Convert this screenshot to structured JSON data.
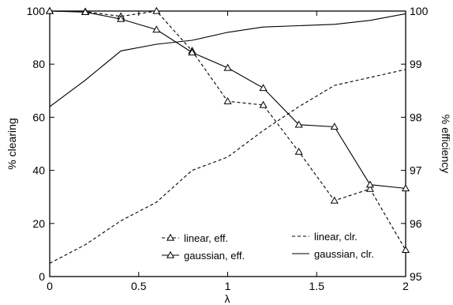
{
  "chart_data": {
    "type": "line",
    "xlabel": "λ",
    "ylabel_left": "% clearing",
    "ylabel_right": "% efficiency",
    "xlim": [
      0,
      2
    ],
    "ylim_left": [
      0,
      100
    ],
    "ylim_right": [
      95,
      100
    ],
    "x_ticks": [
      "0",
      "0.5",
      "1",
      "1.5",
      "2"
    ],
    "y_left_ticks": [
      "0",
      "20",
      "40",
      "60",
      "80",
      "100"
    ],
    "y_right_ticks": [
      "95",
      "96",
      "97",
      "98",
      "99",
      "100"
    ],
    "grid": false,
    "series": [
      {
        "name": "linear, clr.",
        "axis": "left",
        "style": "dashed",
        "marker": "none",
        "x": [
          0,
          0.2,
          0.4,
          0.6,
          0.8,
          1.0,
          1.2,
          1.4,
          1.6,
          1.8,
          2.0
        ],
        "y": [
          5,
          12,
          21,
          28,
          40,
          45,
          55,
          64,
          72,
          75,
          78
        ]
      },
      {
        "name": "gaussian, clr.",
        "axis": "left",
        "style": "solid",
        "marker": "none",
        "x": [
          0,
          0.2,
          0.4,
          0.6,
          0.8,
          1.0,
          1.2,
          1.4,
          1.6,
          1.8,
          2.0
        ],
        "y": [
          64,
          74,
          85,
          87.5,
          89,
          92,
          94,
          94.5,
          95,
          96.5,
          99
        ]
      },
      {
        "name": "linear, eff.",
        "axis": "right",
        "style": "dashed",
        "marker": "triangle",
        "x": [
          0,
          0.2,
          0.4,
          0.6,
          0.8,
          1.0,
          1.2,
          1.4,
          1.6,
          1.8,
          2.0
        ],
        "y": [
          100,
          99.99,
          99.9,
          100,
          99.25,
          98.3,
          98.23,
          97.35,
          96.43,
          96.65,
          95.5
        ]
      },
      {
        "name": "gaussian, eff.",
        "axis": "right",
        "style": "solid",
        "marker": "triangle",
        "x": [
          0,
          0.2,
          0.4,
          0.6,
          0.8,
          1.0,
          1.2,
          1.4,
          1.6,
          1.8,
          2.0
        ],
        "y": [
          100,
          99.98,
          99.85,
          99.65,
          99.22,
          98.93,
          98.55,
          97.86,
          97.82,
          96.73,
          96.66
        ]
      }
    ],
    "legend_placement": "bottom-center"
  }
}
